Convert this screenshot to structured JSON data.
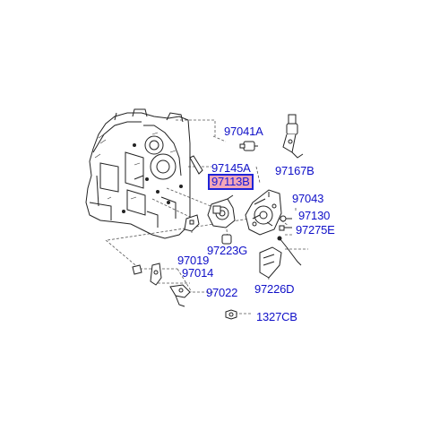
{
  "colors": {
    "label_text": "#1010c8",
    "highlight_fill": "#f3a6b8",
    "highlight_border": "#1f24d8",
    "line_art": "#222222",
    "leader": "#555555"
  },
  "parts": {
    "p97041A": "97041A",
    "p97167B": "97167B",
    "p97145A": "97145A",
    "p97113B": "97113B",
    "p97043": "97043",
    "p97130": "97130",
    "p97275": "97275E",
    "p97019": "97019",
    "p97223G": "97223G",
    "p97014": "97014",
    "p97022": "97022",
    "p97226D": "97226D",
    "p1327CB": "1327CB"
  },
  "selected_part": "97113B"
}
